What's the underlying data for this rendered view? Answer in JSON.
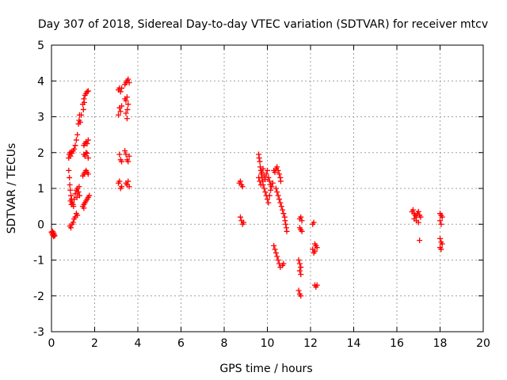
{
  "chart_data": {
    "type": "scatter",
    "title": "Day 307 of 2018, Sidereal Day-to-day VTEC variation (SDTVAR) for receiver mtcv",
    "xlabel": "GPS time / hours",
    "ylabel": "SDTVAR / TECUs",
    "xlim": [
      0,
      20
    ],
    "ylim": [
      -3,
      5
    ],
    "xticks": [
      "0",
      "2",
      "4",
      "6",
      "8",
      "10",
      "12",
      "14",
      "16",
      "18",
      "20"
    ],
    "yticks": [
      "-3",
      "-2",
      "-1",
      "0",
      "1",
      "2",
      "3",
      "4",
      "5"
    ],
    "grid": true,
    "marker": "+",
    "series": [
      {
        "name": "SDTVAR",
        "color": "#ff0000",
        "points": [
          [
            0.0,
            -0.22
          ],
          [
            0.03,
            -0.26
          ],
          [
            0.06,
            -0.3
          ],
          [
            0.09,
            -0.24
          ],
          [
            0.12,
            -0.28
          ],
          [
            0.15,
            -0.32
          ],
          [
            0.05,
            -0.2
          ],
          [
            0.1,
            -0.34
          ],
          [
            0.8,
            1.85
          ],
          [
            0.82,
            1.95
          ],
          [
            0.85,
            2.0
          ],
          [
            0.88,
            1.9
          ],
          [
            0.92,
            2.02
          ],
          [
            0.95,
            1.98
          ],
          [
            1.0,
            2.05
          ],
          [
            1.05,
            2.1
          ],
          [
            1.1,
            2.2
          ],
          [
            1.15,
            2.35
          ],
          [
            1.2,
            2.5
          ],
          [
            1.25,
            2.8
          ],
          [
            1.28,
            2.9
          ],
          [
            1.3,
            3.05
          ],
          [
            1.33,
            2.85
          ],
          [
            1.38,
            3.05
          ],
          [
            0.8,
            1.5
          ],
          [
            0.83,
            1.3
          ],
          [
            0.85,
            1.1
          ],
          [
            0.87,
            0.95
          ],
          [
            0.9,
            0.8
          ],
          [
            0.93,
            0.7
          ],
          [
            0.96,
            0.6
          ],
          [
            1.0,
            0.55
          ],
          [
            1.02,
            0.5
          ],
          [
            0.88,
            0.65
          ],
          [
            0.92,
            0.55
          ],
          [
            1.05,
            0.7
          ],
          [
            1.1,
            0.85
          ],
          [
            1.15,
            0.95
          ],
          [
            1.2,
            1.0
          ],
          [
            1.25,
            0.9
          ],
          [
            1.3,
            0.8
          ],
          [
            1.18,
            0.75
          ],
          [
            1.22,
            0.9
          ],
          [
            1.28,
            1.05
          ],
          [
            0.85,
            -0.05
          ],
          [
            0.9,
            -0.1
          ],
          [
            0.95,
            0.0
          ],
          [
            1.0,
            0.05
          ],
          [
            1.05,
            0.15
          ],
          [
            1.1,
            0.2
          ],
          [
            1.15,
            0.3
          ],
          [
            1.2,
            0.25
          ],
          [
            1.5,
            3.5
          ],
          [
            1.55,
            3.6
          ],
          [
            1.6,
            3.65
          ],
          [
            1.65,
            3.7
          ],
          [
            1.7,
            3.72
          ],
          [
            1.52,
            3.4
          ],
          [
            1.48,
            3.2
          ],
          [
            1.45,
            3.35
          ],
          [
            1.5,
            2.2
          ],
          [
            1.55,
            2.25
          ],
          [
            1.6,
            2.3
          ],
          [
            1.65,
            2.25
          ],
          [
            1.7,
            2.35
          ],
          [
            1.5,
            1.95
          ],
          [
            1.55,
            1.9
          ],
          [
            1.6,
            2.0
          ],
          [
            1.65,
            1.98
          ],
          [
            1.7,
            1.85
          ],
          [
            1.45,
            1.35
          ],
          [
            1.5,
            1.4
          ],
          [
            1.55,
            1.45
          ],
          [
            1.6,
            1.5
          ],
          [
            1.65,
            1.45
          ],
          [
            1.7,
            1.4
          ],
          [
            1.45,
            0.5
          ],
          [
            1.5,
            0.55
          ],
          [
            1.55,
            0.6
          ],
          [
            1.6,
            0.65
          ],
          [
            1.65,
            0.7
          ],
          [
            1.7,
            0.75
          ],
          [
            1.75,
            0.8
          ],
          [
            1.5,
            0.45
          ],
          [
            3.1,
            3.75
          ],
          [
            3.15,
            3.8
          ],
          [
            3.2,
            3.7
          ],
          [
            3.25,
            3.8
          ],
          [
            3.15,
            3.25
          ],
          [
            3.2,
            3.15
          ],
          [
            3.25,
            3.3
          ],
          [
            3.1,
            3.05
          ],
          [
            3.15,
            1.95
          ],
          [
            3.2,
            1.8
          ],
          [
            3.25,
            1.75
          ],
          [
            3.1,
            1.15
          ],
          [
            3.15,
            1.2
          ],
          [
            3.2,
            1.0
          ],
          [
            3.25,
            1.05
          ],
          [
            3.4,
            3.9
          ],
          [
            3.45,
            3.95
          ],
          [
            3.5,
            4.0
          ],
          [
            3.55,
            4.05
          ],
          [
            3.6,
            3.95
          ],
          [
            3.4,
            3.5
          ],
          [
            3.45,
            3.45
          ],
          [
            3.5,
            3.55
          ],
          [
            3.55,
            3.35
          ],
          [
            3.45,
            3.1
          ],
          [
            3.5,
            2.95
          ],
          [
            3.52,
            3.2
          ],
          [
            3.4,
            2.05
          ],
          [
            3.45,
            1.95
          ],
          [
            3.5,
            1.8
          ],
          [
            3.55,
            1.75
          ],
          [
            3.6,
            1.9
          ],
          [
            3.45,
            1.15
          ],
          [
            3.5,
            1.1
          ],
          [
            3.55,
            1.2
          ],
          [
            3.6,
            1.05
          ],
          [
            8.7,
            1.15
          ],
          [
            8.75,
            1.2
          ],
          [
            8.8,
            1.1
          ],
          [
            8.85,
            1.05
          ],
          [
            8.75,
            0.2
          ],
          [
            8.8,
            0.1
          ],
          [
            8.85,
            0.0
          ],
          [
            8.9,
            0.05
          ],
          [
            9.6,
            1.95
          ],
          [
            9.62,
            1.85
          ],
          [
            9.65,
            1.75
          ],
          [
            9.67,
            1.6
          ],
          [
            9.7,
            1.5
          ],
          [
            9.72,
            1.4
          ],
          [
            9.75,
            1.3
          ],
          [
            9.78,
            1.2
          ],
          [
            9.8,
            1.1
          ],
          [
            9.85,
            1.0
          ],
          [
            9.9,
            0.9
          ],
          [
            9.95,
            0.8
          ],
          [
            9.6,
            1.3
          ],
          [
            9.65,
            1.2
          ],
          [
            9.7,
            1.1
          ],
          [
            9.75,
            1.45
          ],
          [
            9.8,
            1.55
          ],
          [
            9.85,
            1.35
          ],
          [
            9.9,
            1.25
          ],
          [
            9.95,
            1.4
          ],
          [
            10.0,
            1.5
          ],
          [
            10.05,
            1.3
          ],
          [
            10.1,
            1.2
          ],
          [
            10.15,
            1.1
          ],
          [
            10.0,
            0.7
          ],
          [
            10.05,
            0.6
          ],
          [
            10.1,
            0.8
          ],
          [
            10.15,
            0.95
          ],
          [
            10.2,
            1.05
          ],
          [
            10.25,
            1.15
          ],
          [
            10.3,
            1.5
          ],
          [
            10.35,
            1.45
          ],
          [
            10.4,
            1.55
          ],
          [
            10.45,
            1.6
          ],
          [
            10.5,
            1.5
          ],
          [
            10.55,
            1.4
          ],
          [
            10.6,
            1.3
          ],
          [
            10.62,
            1.2
          ],
          [
            10.4,
            1.0
          ],
          [
            10.45,
            0.9
          ],
          [
            10.5,
            0.8
          ],
          [
            10.55,
            0.7
          ],
          [
            10.6,
            0.6
          ],
          [
            10.65,
            0.5
          ],
          [
            10.7,
            0.4
          ],
          [
            10.75,
            0.3
          ],
          [
            10.8,
            0.2
          ],
          [
            10.82,
            0.1
          ],
          [
            10.85,
            0.0
          ],
          [
            10.88,
            -0.1
          ],
          [
            10.9,
            -0.2
          ],
          [
            10.3,
            -0.6
          ],
          [
            10.35,
            -0.7
          ],
          [
            10.4,
            -0.8
          ],
          [
            10.45,
            -0.9
          ],
          [
            10.5,
            -1.0
          ],
          [
            10.55,
            -1.1
          ],
          [
            10.6,
            -1.2
          ],
          [
            10.7,
            -1.15
          ],
          [
            10.75,
            -1.1
          ],
          [
            11.5,
            0.15
          ],
          [
            11.55,
            0.2
          ],
          [
            11.6,
            0.1
          ],
          [
            11.5,
            -0.1
          ],
          [
            11.55,
            -0.15
          ],
          [
            11.6,
            -0.2
          ],
          [
            11.45,
            -1.0
          ],
          [
            11.5,
            -1.1
          ],
          [
            11.55,
            -1.2
          ],
          [
            11.5,
            -1.3
          ],
          [
            11.55,
            -1.4
          ],
          [
            11.45,
            -1.85
          ],
          [
            11.5,
            -1.95
          ],
          [
            11.55,
            -2.0
          ],
          [
            12.1,
            0.0
          ],
          [
            12.15,
            0.05
          ],
          [
            12.2,
            -0.55
          ],
          [
            12.25,
            -0.6
          ],
          [
            12.3,
            -0.65
          ],
          [
            12.1,
            -0.7
          ],
          [
            12.15,
            -0.8
          ],
          [
            12.2,
            -0.75
          ],
          [
            12.2,
            -1.7
          ],
          [
            12.25,
            -1.75
          ],
          [
            12.3,
            -1.7
          ],
          [
            16.7,
            0.35
          ],
          [
            16.75,
            0.4
          ],
          [
            16.8,
            0.3
          ],
          [
            16.85,
            0.25
          ],
          [
            16.9,
            0.2
          ],
          [
            16.95,
            0.3
          ],
          [
            17.0,
            0.35
          ],
          [
            17.05,
            0.25
          ],
          [
            17.1,
            0.2
          ],
          [
            16.8,
            0.15
          ],
          [
            16.9,
            0.1
          ],
          [
            17.0,
            0.05
          ],
          [
            17.05,
            -0.45
          ],
          [
            18.0,
            0.3
          ],
          [
            18.05,
            0.25
          ],
          [
            18.1,
            0.2
          ],
          [
            18.0,
            0.1
          ],
          [
            18.05,
            0.0
          ],
          [
            18.0,
            -0.4
          ],
          [
            18.05,
            -0.5
          ],
          [
            18.1,
            -0.55
          ],
          [
            18.0,
            -0.65
          ],
          [
            18.05,
            -0.7
          ]
        ]
      }
    ]
  }
}
